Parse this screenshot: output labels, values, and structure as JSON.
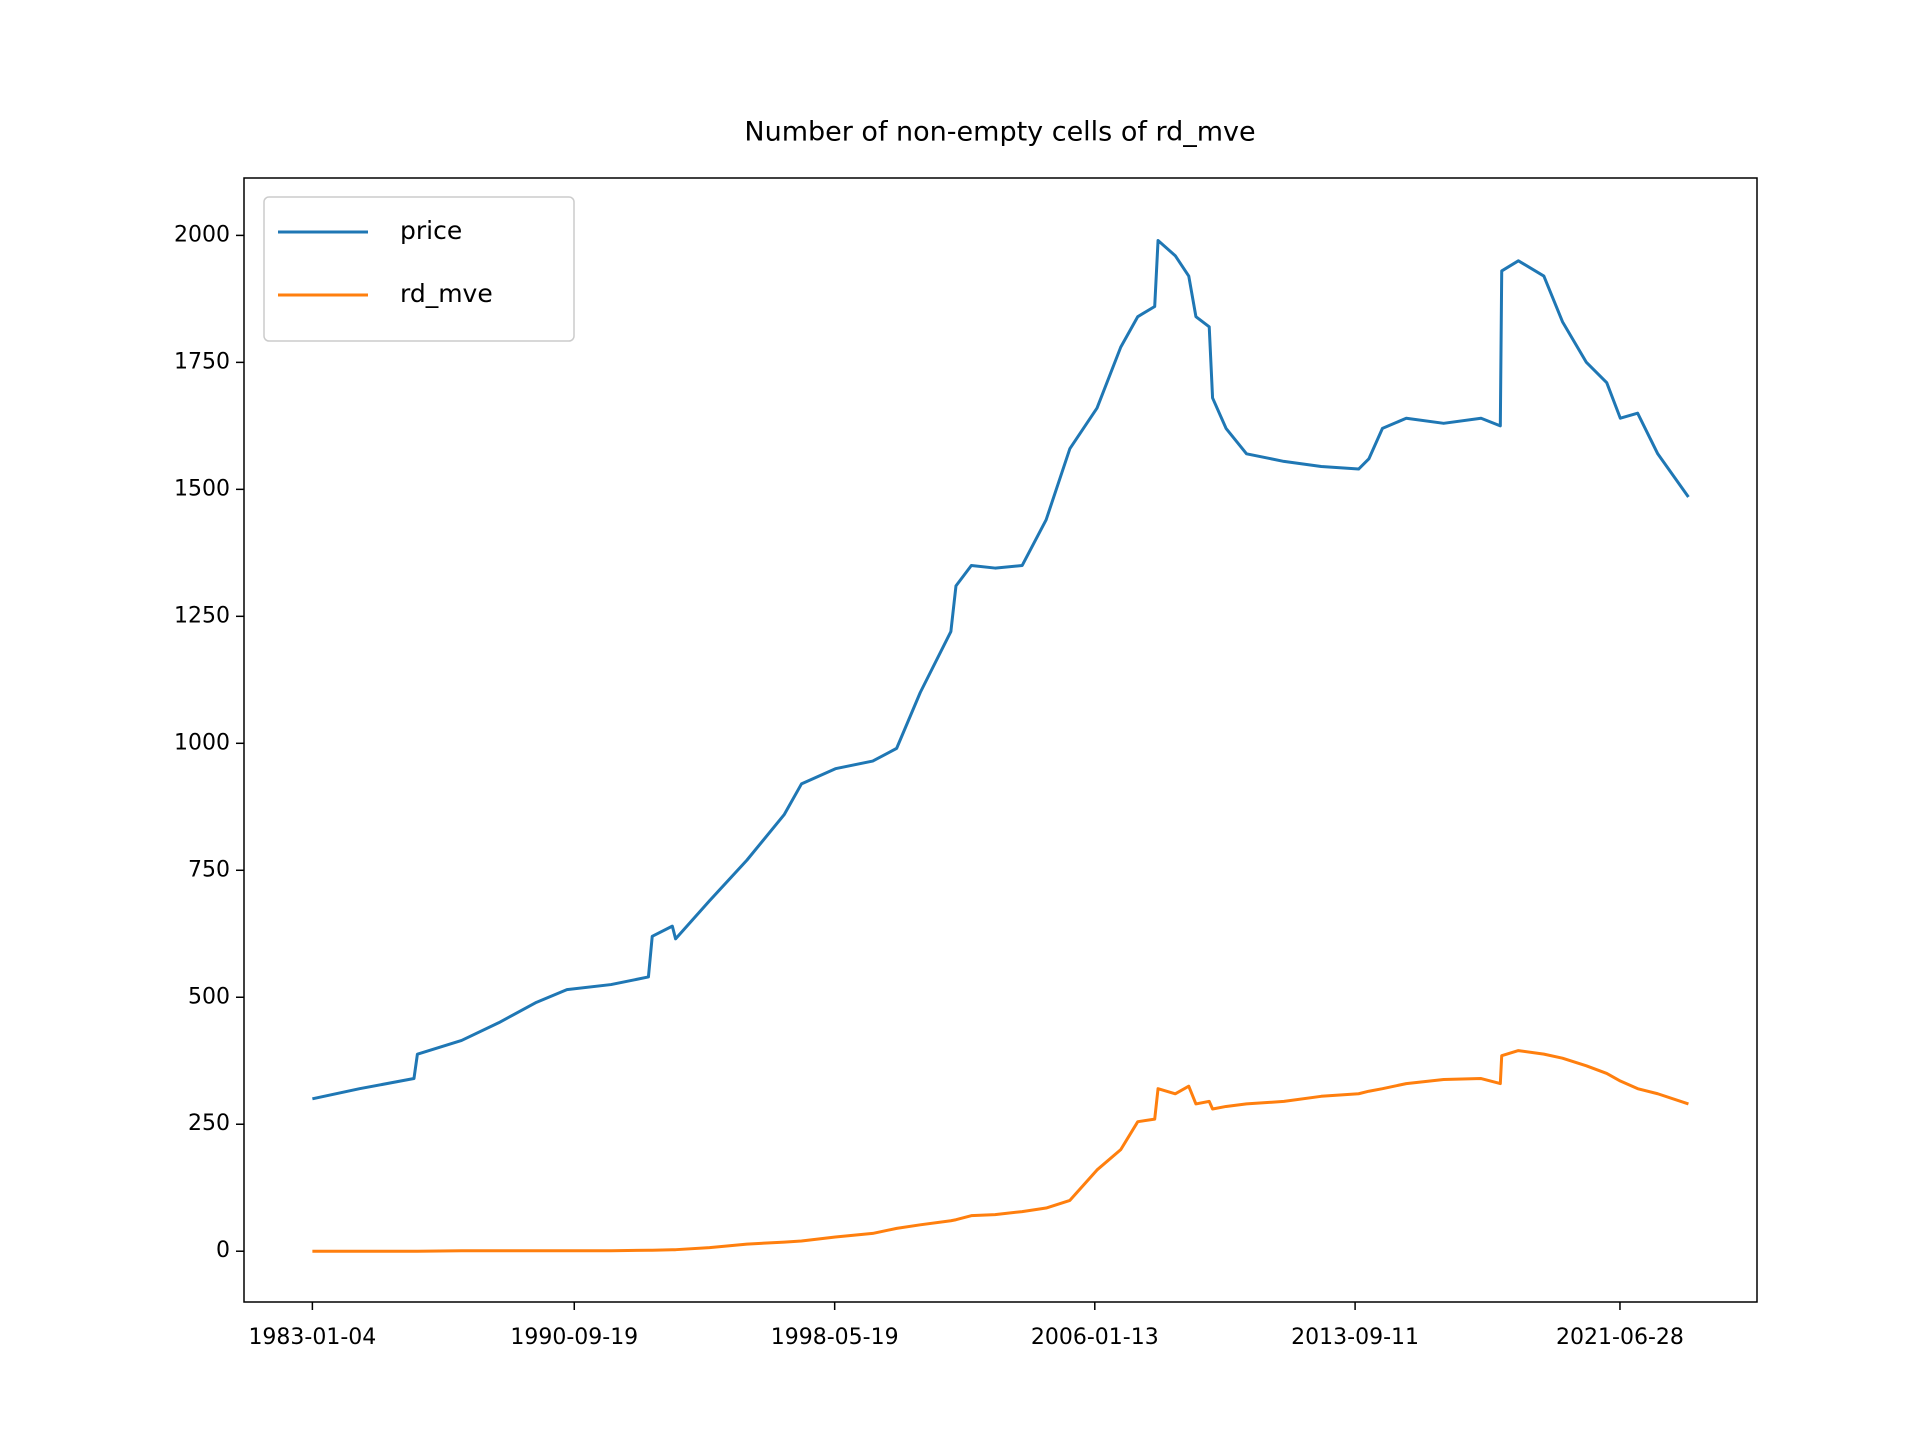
{
  "chart_data": {
    "type": "line",
    "title": "Number of non-empty cells of rd_mve",
    "x": [
      "1983-01-04",
      "1984-05-25",
      "1985-12-31",
      "1986-02-06",
      "1987-05-27",
      "1988-07-01",
      "1989-08-08",
      "1990-07-02",
      "1991-10-19",
      "1992-11-24",
      "1993-01-04",
      "1993-08-08",
      "1993-09-12",
      "1994-09-12",
      "1995-10-19",
      "1996-11-24",
      "1997-05-27",
      "1998-05-27",
      "1999-07-02",
      "2000-03-15",
      "2000-11-24",
      "2001-10-19",
      "2001-12-13",
      "2002-05-27",
      "2003-02-06",
      "2003-11-24",
      "2004-08-08",
      "2005-04-20",
      "2006-02-06",
      "2006-10-19",
      "2007-04-20",
      "2007-10-19",
      "2007-11-24",
      "2008-05-27",
      "2008-10-19",
      "2009-01-04",
      "2009-05-27",
      "2009-07-02",
      "2009-11-24",
      "2010-07-02",
      "2011-08-08",
      "2012-09-12",
      "2013-10-19",
      "2014-02-06",
      "2014-07-02",
      "2015-03-15",
      "2016-04-20",
      "2017-05-27",
      "2017-12-20",
      "2018-01-04",
      "2018-07-02",
      "2019-04-02",
      "2019-10-19",
      "2020-07-02",
      "2021-02-06",
      "2021-07-02",
      "2022-01-04",
      "2022-08-08",
      "2023-07-04"
    ],
    "series": [
      {
        "name": "price",
        "color": "#1f77b4",
        "values": [
          300,
          320,
          340,
          388,
          415,
          450,
          490,
          515,
          525,
          540,
          620,
          640,
          615,
          690,
          770,
          860,
          920,
          950,
          965,
          990,
          1100,
          1220,
          1310,
          1350,
          1345,
          1350,
          1440,
          1580,
          1660,
          1780,
          1840,
          1860,
          1990,
          1960,
          1920,
          1840,
          1820,
          1680,
          1620,
          1570,
          1555,
          1545,
          1540,
          1560,
          1620,
          1640,
          1630,
          1640,
          1625,
          1930,
          1950,
          1920,
          1830,
          1750,
          1710,
          1640,
          1650,
          1570,
          1485
        ]
      },
      {
        "name": "rd_mve",
        "color": "#ff7f0e",
        "values": [
          0,
          0,
          0,
          0,
          1,
          1,
          1,
          1,
          1,
          2,
          2,
          3,
          3,
          7,
          14,
          18,
          20,
          28,
          35,
          45,
          52,
          60,
          62,
          70,
          72,
          78,
          85,
          100,
          160,
          200,
          255,
          260,
          320,
          310,
          325,
          290,
          295,
          280,
          285,
          290,
          295,
          305,
          310,
          315,
          320,
          330,
          338,
          340,
          330,
          385,
          395,
          388,
          380,
          365,
          350,
          335,
          320,
          310,
          290
        ]
      }
    ],
    "xlim": [
      "1980-12-30",
      "2025-07-10"
    ],
    "xticks": [
      "1983-01-04",
      "1990-09-19",
      "1998-05-19",
      "2006-01-13",
      "2013-09-11",
      "2021-06-28"
    ],
    "ylim": [
      -100,
      2113
    ],
    "yticks": [
      0,
      250,
      500,
      750,
      1000,
      1250,
      1500,
      1750,
      2000
    ],
    "grid": false,
    "legend": "upper left"
  }
}
